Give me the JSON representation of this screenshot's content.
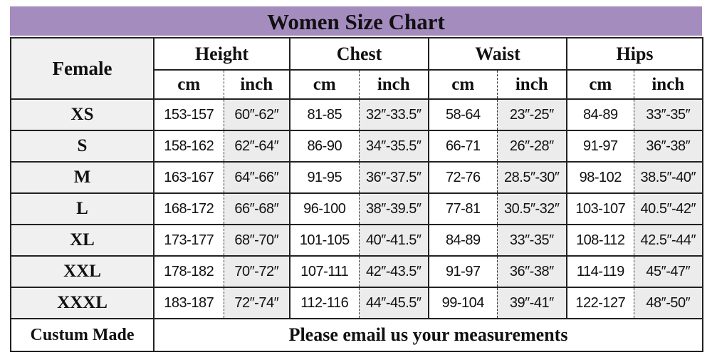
{
  "title": "Women Size Chart",
  "header": {
    "corner": "Female",
    "groups": [
      "Height",
      "Chest",
      "Waist",
      "Hips"
    ],
    "units": [
      "cm",
      "inch"
    ]
  },
  "rows": [
    {
      "size": "XS",
      "values": [
        "153-157",
        "60″-62″",
        "81-85",
        "32″-33.5″",
        "58-64",
        "23″-25″",
        "84-89",
        "33″-35″"
      ]
    },
    {
      "size": "S",
      "values": [
        "158-162",
        "62″-64″",
        "86-90",
        "34″-35.5″",
        "66-71",
        "26″-28″",
        "91-97",
        "36″-38″"
      ]
    },
    {
      "size": "M",
      "values": [
        "163-167",
        "64″-66″",
        "91-95",
        "36″-37.5″",
        "72-76",
        "28.5″-30″",
        "98-102",
        "38.5″-40″"
      ]
    },
    {
      "size": "L",
      "values": [
        "168-172",
        "66″-68″",
        "96-100",
        "38″-39.5″",
        "77-81",
        "30.5″-32″",
        "103-107",
        "40.5″-42″"
      ]
    },
    {
      "size": "XL",
      "values": [
        "173-177",
        "68″-70″",
        "101-105",
        "40″-41.5″",
        "84-89",
        "33″-35″",
        "108-112",
        "42.5″-44″"
      ]
    },
    {
      "size": "XXL",
      "values": [
        "178-182",
        "70″-72″",
        "107-111",
        "42″-43.5″",
        "91-97",
        "36″-38″",
        "114-119",
        "45″-47″"
      ]
    },
    {
      "size": "XXXL",
      "values": [
        "183-187",
        "72″-74″",
        "112-116",
        "44″-45.5″",
        "99-104",
        "39″-41″",
        "122-127",
        "48″-50″"
      ]
    }
  ],
  "custom": {
    "label": "Custum Made",
    "message": "Please email us your measurements"
  },
  "colors": {
    "title_bg": "#a58cbf",
    "shaded_cell": "#ececec"
  }
}
